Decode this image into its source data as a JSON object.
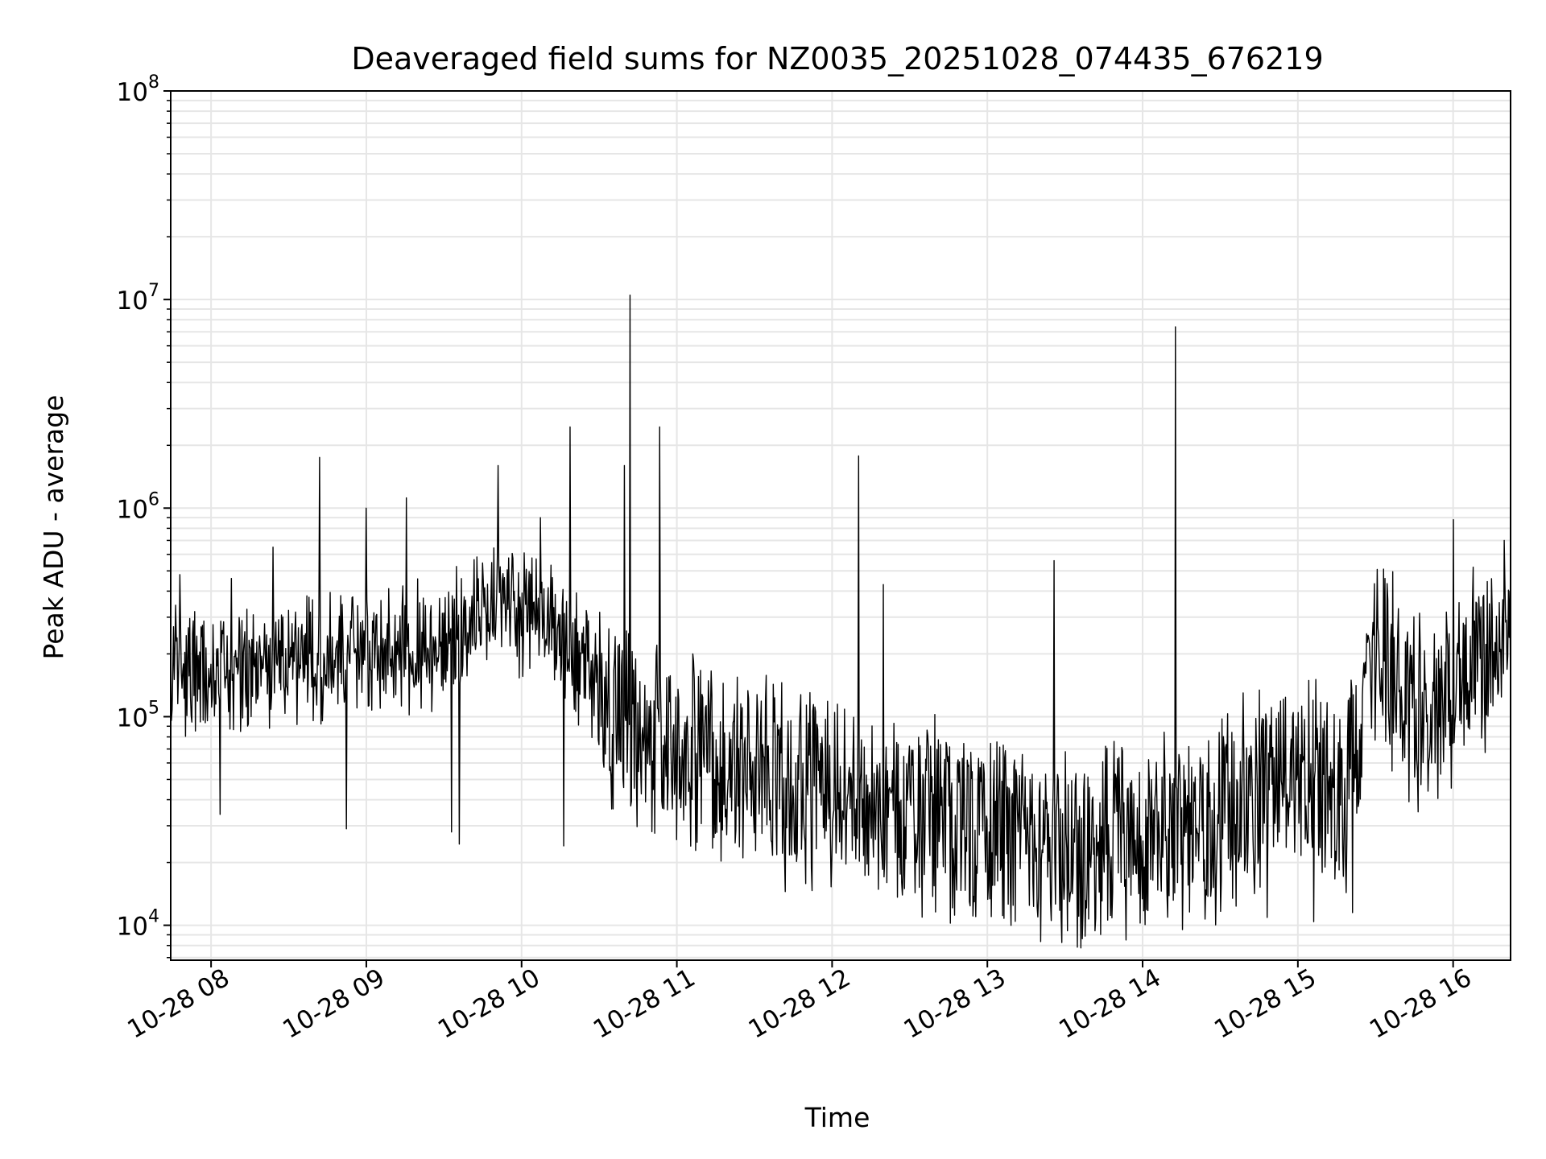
{
  "chart_data": {
    "type": "line",
    "title": "Deaveraged field sums for NZ0035_20251028_074435_676219",
    "xlabel": "Time",
    "ylabel": "Peak ADU - average",
    "yscale": "log",
    "ylim": [
      6800,
      100000000
    ],
    "xlim_hours": [
      7.74,
      16.37
    ],
    "x_ticks": [
      {
        "hour": 8,
        "label": "10-28 08"
      },
      {
        "hour": 9,
        "label": "10-28 09"
      },
      {
        "hour": 10,
        "label": "10-28 10"
      },
      {
        "hour": 11,
        "label": "10-28 11"
      },
      {
        "hour": 12,
        "label": "10-28 12"
      },
      {
        "hour": 13,
        "label": "10-28 13"
      },
      {
        "hour": 14,
        "label": "10-28 14"
      },
      {
        "hour": 15,
        "label": "10-28 15"
      },
      {
        "hour": 16,
        "label": "10-28 16"
      }
    ],
    "y_ticks": [
      {
        "value": 10000,
        "base": "10",
        "exp": "4"
      },
      {
        "value": 100000,
        "base": "10",
        "exp": "5"
      },
      {
        "value": 1000000,
        "base": "10",
        "exp": "6"
      },
      {
        "value": 10000000,
        "base": "10",
        "exp": "7"
      },
      {
        "value": 100000000,
        "base": "10",
        "exp": "8"
      }
    ],
    "grid": true,
    "line_color": "#000000",
    "grid_color": "#e6e6e6",
    "series": [
      {
        "name": "deaveraged",
        "baseline_hours": [
          7.74,
          8.5,
          9.0,
          9.5,
          9.85,
          10.25,
          10.5,
          10.8,
          11.5,
          12.0,
          12.5,
          13.0,
          13.5,
          14.0,
          14.5,
          15.0,
          15.3,
          15.5,
          15.8,
          16.1,
          16.37
        ],
        "baseline_log10": [
          5.2,
          5.25,
          5.3,
          5.35,
          5.55,
          5.4,
          5.1,
          4.85,
          4.75,
          4.65,
          4.55,
          4.45,
          4.4,
          4.4,
          4.5,
          4.8,
          4.6,
          5.3,
          5.0,
          5.2,
          5.4
        ],
        "spikes": [
          {
            "hour": 7.8,
            "value": 480000
          },
          {
            "hour": 8.13,
            "value": 460000
          },
          {
            "hour": 8.4,
            "value": 650000
          },
          {
            "hour": 8.7,
            "value": 1750000
          },
          {
            "hour": 9.0,
            "value": 1000000
          },
          {
            "hour": 9.26,
            "value": 1120000
          },
          {
            "hour": 9.85,
            "value": 1600000
          },
          {
            "hour": 10.12,
            "value": 900000
          },
          {
            "hour": 10.31,
            "value": 2450000
          },
          {
            "hour": 10.66,
            "value": 1600000
          },
          {
            "hour": 10.7,
            "value": 10500000
          },
          {
            "hour": 10.89,
            "value": 2450000
          },
          {
            "hour": 12.17,
            "value": 1780000
          },
          {
            "hour": 12.33,
            "value": 430000
          },
          {
            "hour": 13.43,
            "value": 560000
          },
          {
            "hour": 14.21,
            "value": 7400000
          },
          {
            "hour": 15.55,
            "value": 510000
          },
          {
            "hour": 16.0,
            "value": 880000
          },
          {
            "hour": 16.33,
            "value": 700000
          }
        ],
        "dips": [
          {
            "hour": 8.06,
            "value": 34000
          },
          {
            "hour": 8.87,
            "value": 29000
          },
          {
            "hour": 9.55,
            "value": 28000
          },
          {
            "hour": 9.6,
            "value": 24500
          },
          {
            "hour": 10.27,
            "value": 24000
          },
          {
            "hour": 11.7,
            "value": 14500
          },
          {
            "hour": 13.7,
            "value": 10800
          },
          {
            "hour": 14.4,
            "value": 10700
          },
          {
            "hour": 14.8,
            "value": 10900
          },
          {
            "hour": 15.1,
            "value": 10400
          },
          {
            "hour": 15.35,
            "value": 11500
          }
        ]
      }
    ]
  }
}
